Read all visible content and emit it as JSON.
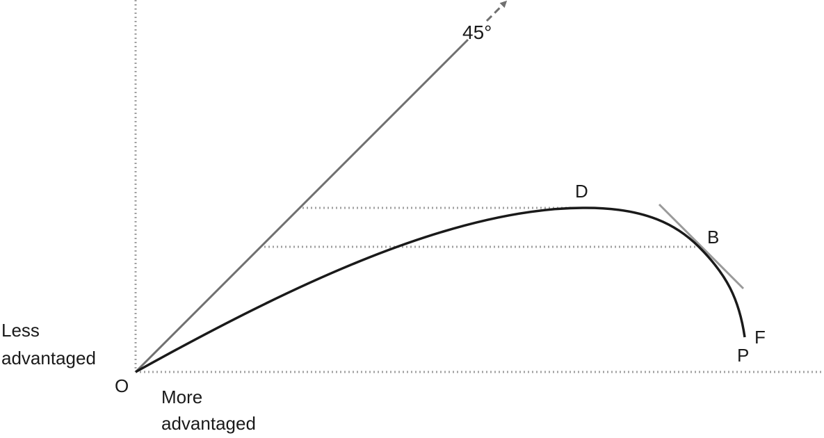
{
  "diagram": {
    "angle_label": "45°",
    "axis_labels": {
      "vertical_line1": "Less",
      "vertical_line2": "advantaged",
      "horizontal_line1": "More",
      "horizontal_line2": "advantaged"
    },
    "point_labels": {
      "origin": "O",
      "d": "D",
      "b": "B",
      "p": "P",
      "f": "F"
    },
    "colors": {
      "curve": "#1a1a1a",
      "diagonal": "#707070",
      "tangent": "#9a9a9a",
      "guides": "#a0a0a0",
      "text": "#1a1a1a"
    }
  }
}
